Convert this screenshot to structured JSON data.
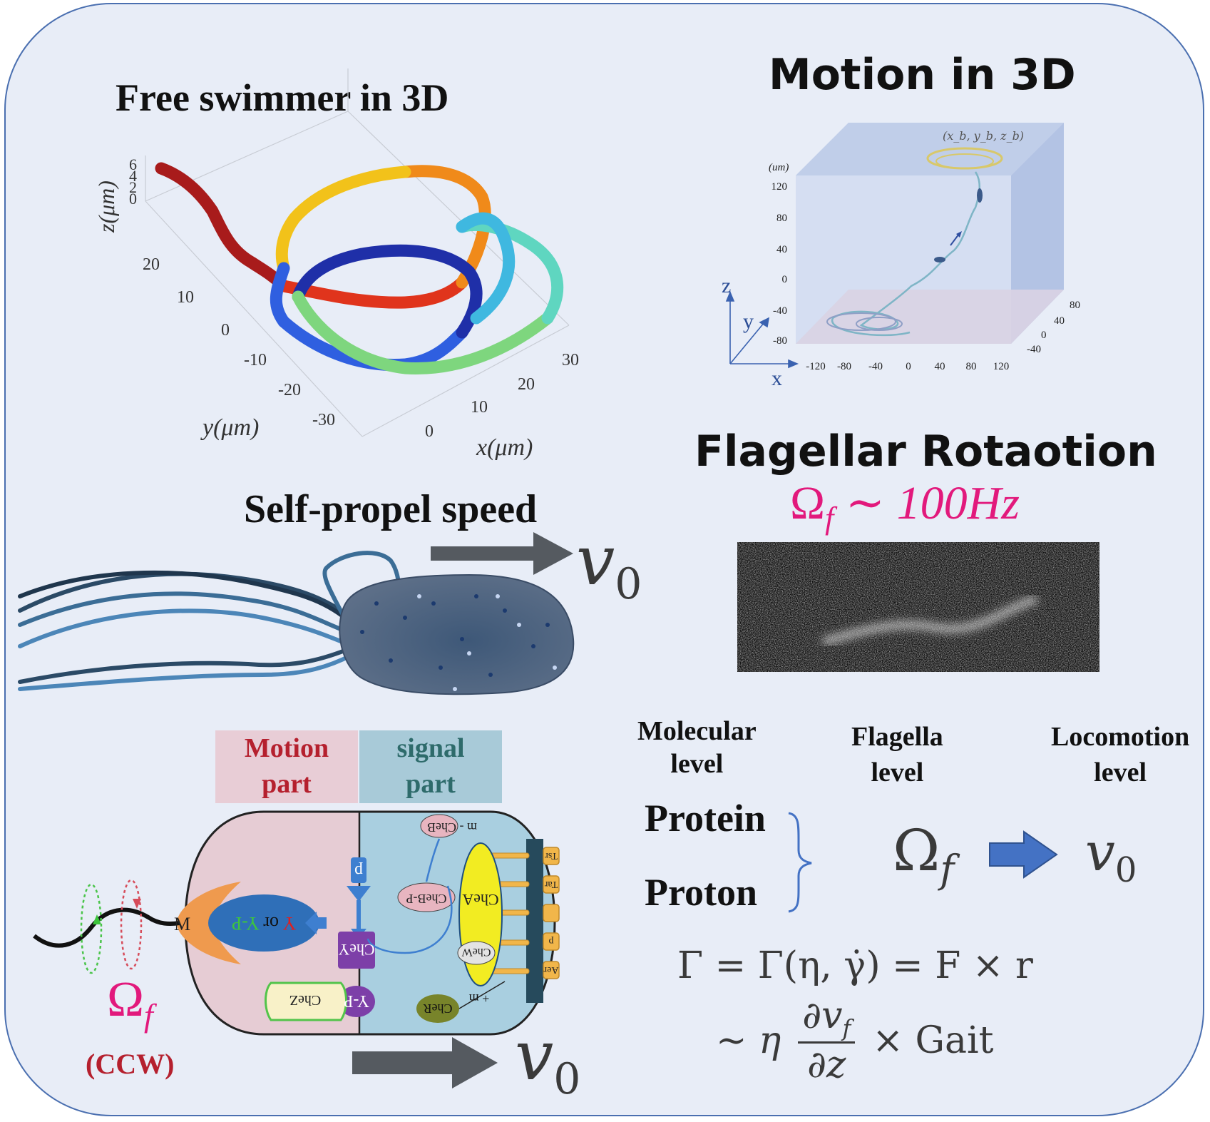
{
  "free_swimmer": {
    "title": "Free swimmer in 3D",
    "z_axis_label": "z(μm)",
    "y_axis_label": "y(μm)",
    "x_axis_label": "x(μm)",
    "z_ticks": [
      "6",
      "4",
      "2",
      "0"
    ],
    "y_ticks": [
      "20",
      "10",
      "0",
      "-10",
      "-20",
      "-30"
    ],
    "x_ticks": [
      "0",
      "10",
      "20",
      "30"
    ]
  },
  "motion_3d": {
    "title": "Motion in 3D",
    "unit_label": "(um)",
    "position_label": "(x_b, y_b, z_b)",
    "z_ticks": [
      "120",
      "80",
      "40",
      "0",
      "-40",
      "-80"
    ],
    "x_ticks": [
      "-120",
      "-80",
      "-40",
      "0",
      "40",
      "80",
      "120"
    ],
    "y_ticks": [
      "80",
      "40",
      "0",
      "-40"
    ],
    "axis_z": "z",
    "axis_y": "y",
    "axis_x": "x"
  },
  "self_propel": {
    "title": "Self-propel speed",
    "speed_symbol": "v",
    "speed_subscript": "0"
  },
  "flagellar": {
    "title": "Flagellar Rotaotion",
    "omega_symbol": "Ω",
    "omega_subscript": "f",
    "relation": "∼ 100Hz"
  },
  "cell_diagram": {
    "motion_part_line1": "Motion",
    "motion_part_line2": "part",
    "signal_part_line1": "signal",
    "signal_part_line2": "part",
    "motor_label": "M",
    "y_label_y": "Y",
    "y_label_or": "or",
    "y_label_yp": "Y-P",
    "p_label": "p",
    "chey_label": "CheY",
    "yp_label": "Y-P",
    "chez_label": "CheZ",
    "cheb_label": "CheB",
    "cheb_m_label": "m - CheB",
    "chebp_label": "CheB-P",
    "chea_label": "CheA",
    "chew_label": "CheW",
    "cher_label": "CheR",
    "plus_m_label": "+ m",
    "receptor_tsr": "Tsr",
    "receptor_tar": "Tar",
    "receptor_p": "p",
    "receptor_aer": "Aer",
    "omega_symbol": "Ω",
    "omega_subscript": "f",
    "ccw_label": "(CCW)",
    "speed_symbol": "v",
    "speed_subscript": "0"
  },
  "levels": {
    "molecular_line1": "Molecular",
    "molecular_line2": "level",
    "flagella_line1": "Flagella",
    "flagella_line2": "level",
    "locomotion_line1": "Locomotion",
    "locomotion_line2": "level",
    "protein": "Protein",
    "proton": "Proton",
    "omega_symbol": "Ω",
    "omega_subscript": "f",
    "speed_symbol": "v",
    "speed_subscript": "0"
  },
  "equations": {
    "eq1": "Γ = Γ(η, γ̇) = F × r",
    "eq2_prefix": "∼ η",
    "eq2_numerator": "∂v",
    "eq2_numerator_sub": "f",
    "eq2_denominator": "∂z",
    "eq2_suffix": "× Gait"
  },
  "colors": {
    "accent_pink": "#e2197c",
    "dark_red": "#b5202e",
    "teal_text": "#2e6b6b",
    "motion_box": "#e8cdd6",
    "signal_box": "#a8cad8",
    "arrow_gray": "#555a60",
    "arrow_blue": "#4472c4"
  }
}
